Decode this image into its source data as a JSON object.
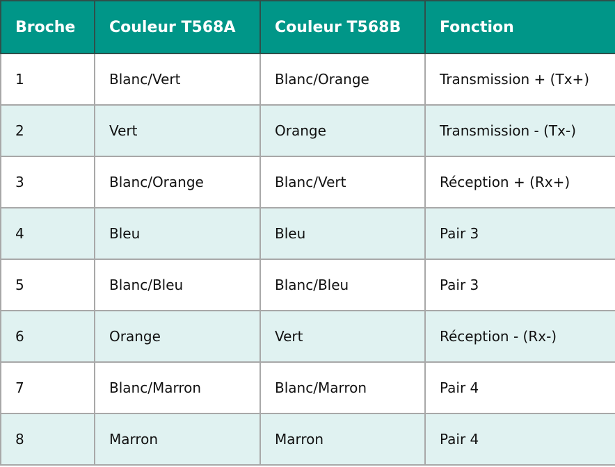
{
  "table": {
    "headers": [
      "Broche",
      "Couleur T568A",
      "Couleur T568B",
      "Fonction"
    ],
    "rows": [
      [
        "1",
        "Blanc/Vert",
        "Blanc/Orange",
        "Transmission + (Tx+)"
      ],
      [
        "2",
        "Vert",
        "Orange",
        "Transmission - (Tx-)"
      ],
      [
        "3",
        "Blanc/Orange",
        "Blanc/Vert",
        "Réception + (Rx+)"
      ],
      [
        "4",
        "Bleu",
        "Bleu",
        "Pair 3"
      ],
      [
        "5",
        "Blanc/Bleu",
        "Blanc/Bleu",
        "Pair 3"
      ],
      [
        "6",
        "Orange",
        "Vert",
        "Réception - (Rx-)"
      ],
      [
        "7",
        "Blanc/Marron",
        "Blanc/Marron",
        "Pair 4"
      ],
      [
        "8",
        "Marron",
        "Marron",
        "Pair 4"
      ]
    ]
  },
  "colors": {
    "header_bg": "#009688",
    "alt_row_bg": "#e0f2f1",
    "header_text": "#ffffff"
  }
}
